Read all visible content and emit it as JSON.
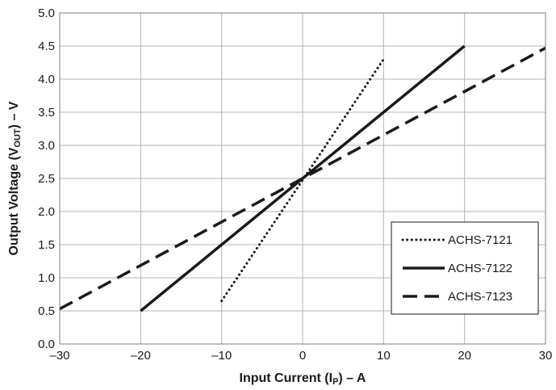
{
  "chart_data": {
    "type": "line",
    "title": "",
    "xlabel": "Input Current (I",
    "xlabel_sub": "P",
    "xlabel_suffix": ") – A",
    "ylabel": "Output Voltage (V",
    "ylabel_sub": "OUT",
    "ylabel_suffix": ") – V",
    "xlim": [
      -30,
      30
    ],
    "ylim": [
      0.0,
      5.0
    ],
    "x_ticks": [
      -30,
      -20,
      -10,
      0,
      10,
      20,
      30
    ],
    "x_tick_labels": [
      "–30",
      "–20",
      "–10",
      "0",
      "10",
      "20",
      "30"
    ],
    "y_ticks": [
      0.0,
      0.5,
      1.0,
      1.5,
      2.0,
      2.5,
      3.0,
      3.5,
      4.0,
      4.5,
      5.0
    ],
    "y_tick_labels": [
      "0.0",
      "0.5",
      "1.0",
      "1.5",
      "2.0",
      "2.5",
      "3.0",
      "3.5",
      "4.0",
      "4.5",
      "5.0"
    ],
    "grid": true,
    "legend_position": "bottom-right",
    "series": [
      {
        "name": "ACHS-7121",
        "style": "dotted",
        "color": "#1a1a1a",
        "x": [
          -10,
          10
        ],
        "y": [
          0.65,
          4.3
        ]
      },
      {
        "name": "ACHS-7122",
        "style": "solid",
        "color": "#1a1a1a",
        "x": [
          -20,
          20
        ],
        "y": [
          0.5,
          4.5
        ]
      },
      {
        "name": "ACHS-7123",
        "style": "dashed",
        "color": "#1a1a1a",
        "x": [
          -30,
          30
        ],
        "y": [
          0.53,
          4.47
        ]
      }
    ]
  }
}
